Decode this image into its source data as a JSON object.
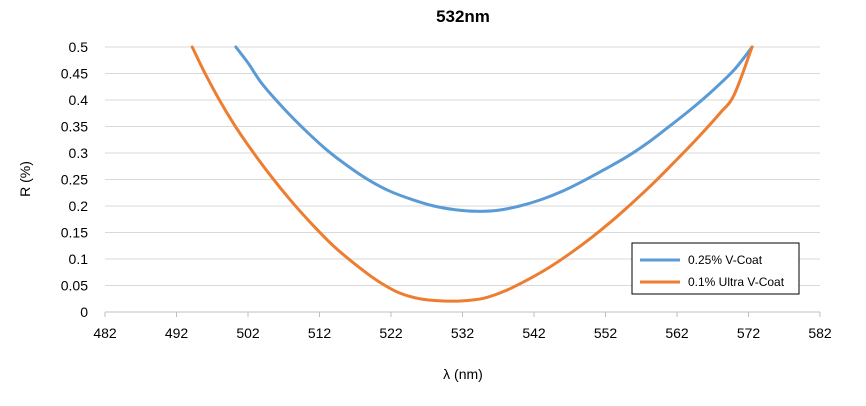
{
  "chart_data": {
    "type": "line",
    "title": "532nm",
    "xlabel": "λ (nm)",
    "ylabel": "R (%)",
    "xlim": [
      482,
      582
    ],
    "ylim": [
      0,
      0.5
    ],
    "xticks": [
      482,
      492,
      502,
      512,
      522,
      532,
      542,
      552,
      562,
      572,
      582
    ],
    "yticks": [
      0,
      0.05,
      0.1,
      0.15,
      0.2,
      0.25,
      0.3,
      0.35,
      0.4,
      0.45,
      0.5
    ],
    "grid": "horizontal",
    "legend_position": "bottom-right",
    "series": [
      {
        "name": "0.25% V-Coat",
        "color": "#5B9BD5",
        "x": [
          500.3,
          502,
          504,
          507,
          510,
          513,
          516,
          519,
          522,
          525,
          528,
          531,
          534,
          537,
          540,
          543,
          546,
          549,
          552,
          555,
          558,
          561,
          564,
          567,
          570,
          572.5
        ],
        "y": [
          0.5,
          0.47,
          0.43,
          0.384,
          0.343,
          0.306,
          0.275,
          0.248,
          0.227,
          0.212,
          0.2,
          0.193,
          0.19,
          0.192,
          0.2,
          0.212,
          0.228,
          0.248,
          0.27,
          0.293,
          0.32,
          0.351,
          0.383,
          0.418,
          0.457,
          0.5
        ]
      },
      {
        "name": "0.1% Ultra V-Coat",
        "color": "#ED7D31",
        "x": [
          494.2,
          496,
          498,
          500,
          502,
          505,
          508,
          511,
          514,
          517,
          520,
          523,
          526,
          529,
          532,
          535,
          538,
          541,
          544,
          547,
          550,
          553,
          556,
          559,
          562,
          565,
          568,
          570,
          572.5
        ],
        "y": [
          0.5,
          0.45,
          0.4,
          0.355,
          0.315,
          0.26,
          0.21,
          0.165,
          0.124,
          0.09,
          0.06,
          0.037,
          0.025,
          0.021,
          0.021,
          0.026,
          0.04,
          0.06,
          0.083,
          0.11,
          0.14,
          0.173,
          0.209,
          0.247,
          0.288,
          0.33,
          0.375,
          0.41,
          0.5
        ]
      }
    ]
  }
}
